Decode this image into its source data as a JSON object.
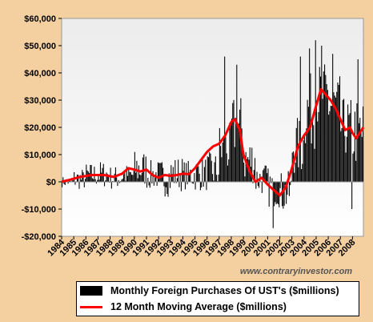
{
  "chart_data": {
    "type": "bar",
    "watermark": "www.contraryinvestor.com",
    "ylim": [
      -20000,
      60000
    ],
    "yticks": [
      {
        "value": 60000,
        "label": "$60,000"
      },
      {
        "value": 50000,
        "label": "$50,000"
      },
      {
        "value": 40000,
        "label": "$40,000"
      },
      {
        "value": 30000,
        "label": "$30,000"
      },
      {
        "value": 20000,
        "label": "$20,000"
      },
      {
        "value": 10000,
        "label": "$10,000"
      },
      {
        "value": 0,
        "label": "$0"
      },
      {
        "value": -10000,
        "label": "-$10,000"
      },
      {
        "value": -20000,
        "label": "-$20,000"
      }
    ],
    "xticks": [
      "1984",
      "1985",
      "1986",
      "1987",
      "1988",
      "1989",
      "1990",
      "1991",
      "1992",
      "1993",
      "1994",
      "1995",
      "1996",
      "1997",
      "1998",
      "1999",
      "2000",
      "2001",
      "2002",
      "2003",
      "2004",
      "2005",
      "2006",
      "2007",
      "2008"
    ],
    "x_start_year": 1984,
    "x_end_year": 2008.9,
    "series": [
      {
        "name": "Monthly Foreign Purchases Of UST's ($millions)",
        "kind": "bar",
        "color": "#000000",
        "annual_mean": [
          0,
          1000,
          2500,
          2800,
          1500,
          2500,
          4800,
          2500,
          1500,
          3000,
          2500,
          3000,
          4000,
          12000,
          20000,
          8000,
          1000,
          -2000,
          -4000,
          13000,
          26000,
          32000,
          28000,
          20000,
          18000
        ],
        "annual_amplitude": [
          2000,
          4000,
          4500,
          5000,
          4500,
          4000,
          7000,
          5500,
          7000,
          6500,
          5500,
          6500,
          7000,
          10000,
          12000,
          9000,
          6000,
          7500,
          8000,
          11000,
          14000,
          12000,
          11000,
          11000,
          13000
        ],
        "peaks": [
          [
            1997.4,
            46000
          ],
          [
            1998.4,
            43000
          ],
          [
            2001.4,
            -17000
          ],
          [
            2003.7,
            46000
          ],
          [
            2004.4,
            49000
          ],
          [
            2004.9,
            52000
          ],
          [
            2005.4,
            50000
          ],
          [
            2006.3,
            47000
          ],
          [
            2007.9,
            -10000
          ],
          [
            2008.4,
            45000
          ]
        ]
      },
      {
        "name": "12 Month Moving Average ($millions)",
        "kind": "line",
        "color": "#ff0000",
        "x": [
          1984.0,
          1984.7,
          1985.5,
          1986.5,
          1987.5,
          1988.3,
          1989.0,
          1989.5,
          1990.0,
          1990.5,
          1991.0,
          1991.5,
          1992.0,
          1992.5,
          1993.0,
          1993.5,
          1994.0,
          1994.5,
          1995.0,
          1995.5,
          1996.0,
          1996.5,
          1997.0,
          1997.5,
          1998.0,
          1998.3,
          1998.7,
          1999.0,
          1999.5,
          2000.0,
          2000.5,
          2001.0,
          2001.5,
          2002.0,
          2002.5,
          2003.0,
          2003.5,
          2004.0,
          2004.5,
          2005.0,
          2005.4,
          2005.8,
          2006.2,
          2006.6,
          2007.0,
          2007.4,
          2007.8,
          2008.0,
          2008.3,
          2008.6,
          2008.9
        ],
        "y": [
          0,
          800,
          1800,
          2500,
          2500,
          1800,
          3000,
          5000,
          4500,
          3800,
          4500,
          2500,
          1500,
          2500,
          2200,
          2500,
          3000,
          2800,
          5000,
          8000,
          11000,
          13000,
          14000,
          17000,
          22000,
          23000,
          19000,
          10000,
          4000,
          0,
          1500,
          -1000,
          -3000,
          -5000,
          -2000,
          5000,
          13000,
          17000,
          20000,
          28000,
          34000,
          32000,
          30000,
          27000,
          23000,
          19000,
          20000,
          18000,
          16000,
          18000,
          20000
        ]
      }
    ]
  }
}
